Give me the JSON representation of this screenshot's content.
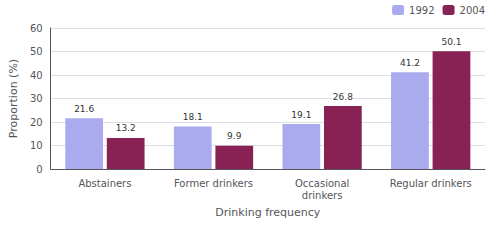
{
  "chart_data": {
    "type": "bar",
    "categories": [
      "Abstainers",
      "Former drinkers",
      "Occasional\ndrinkers",
      "Regular drinkers"
    ],
    "series": [
      {
        "name": "1992",
        "color": "#aaaaee",
        "values": [
          21.6,
          18.1,
          19.1,
          41.2
        ]
      },
      {
        "name": "2004",
        "color": "#882255",
        "values": [
          13.2,
          9.9,
          26.8,
          50.1
        ]
      }
    ],
    "xlabel": "Drinking frequency",
    "ylabel": "Proportion (%)",
    "ylim": [
      0,
      60
    ],
    "yticks": [
      0,
      10,
      20,
      30,
      40,
      50,
      60
    ],
    "grid": true,
    "legend": "upper right",
    "data_labels": true
  }
}
